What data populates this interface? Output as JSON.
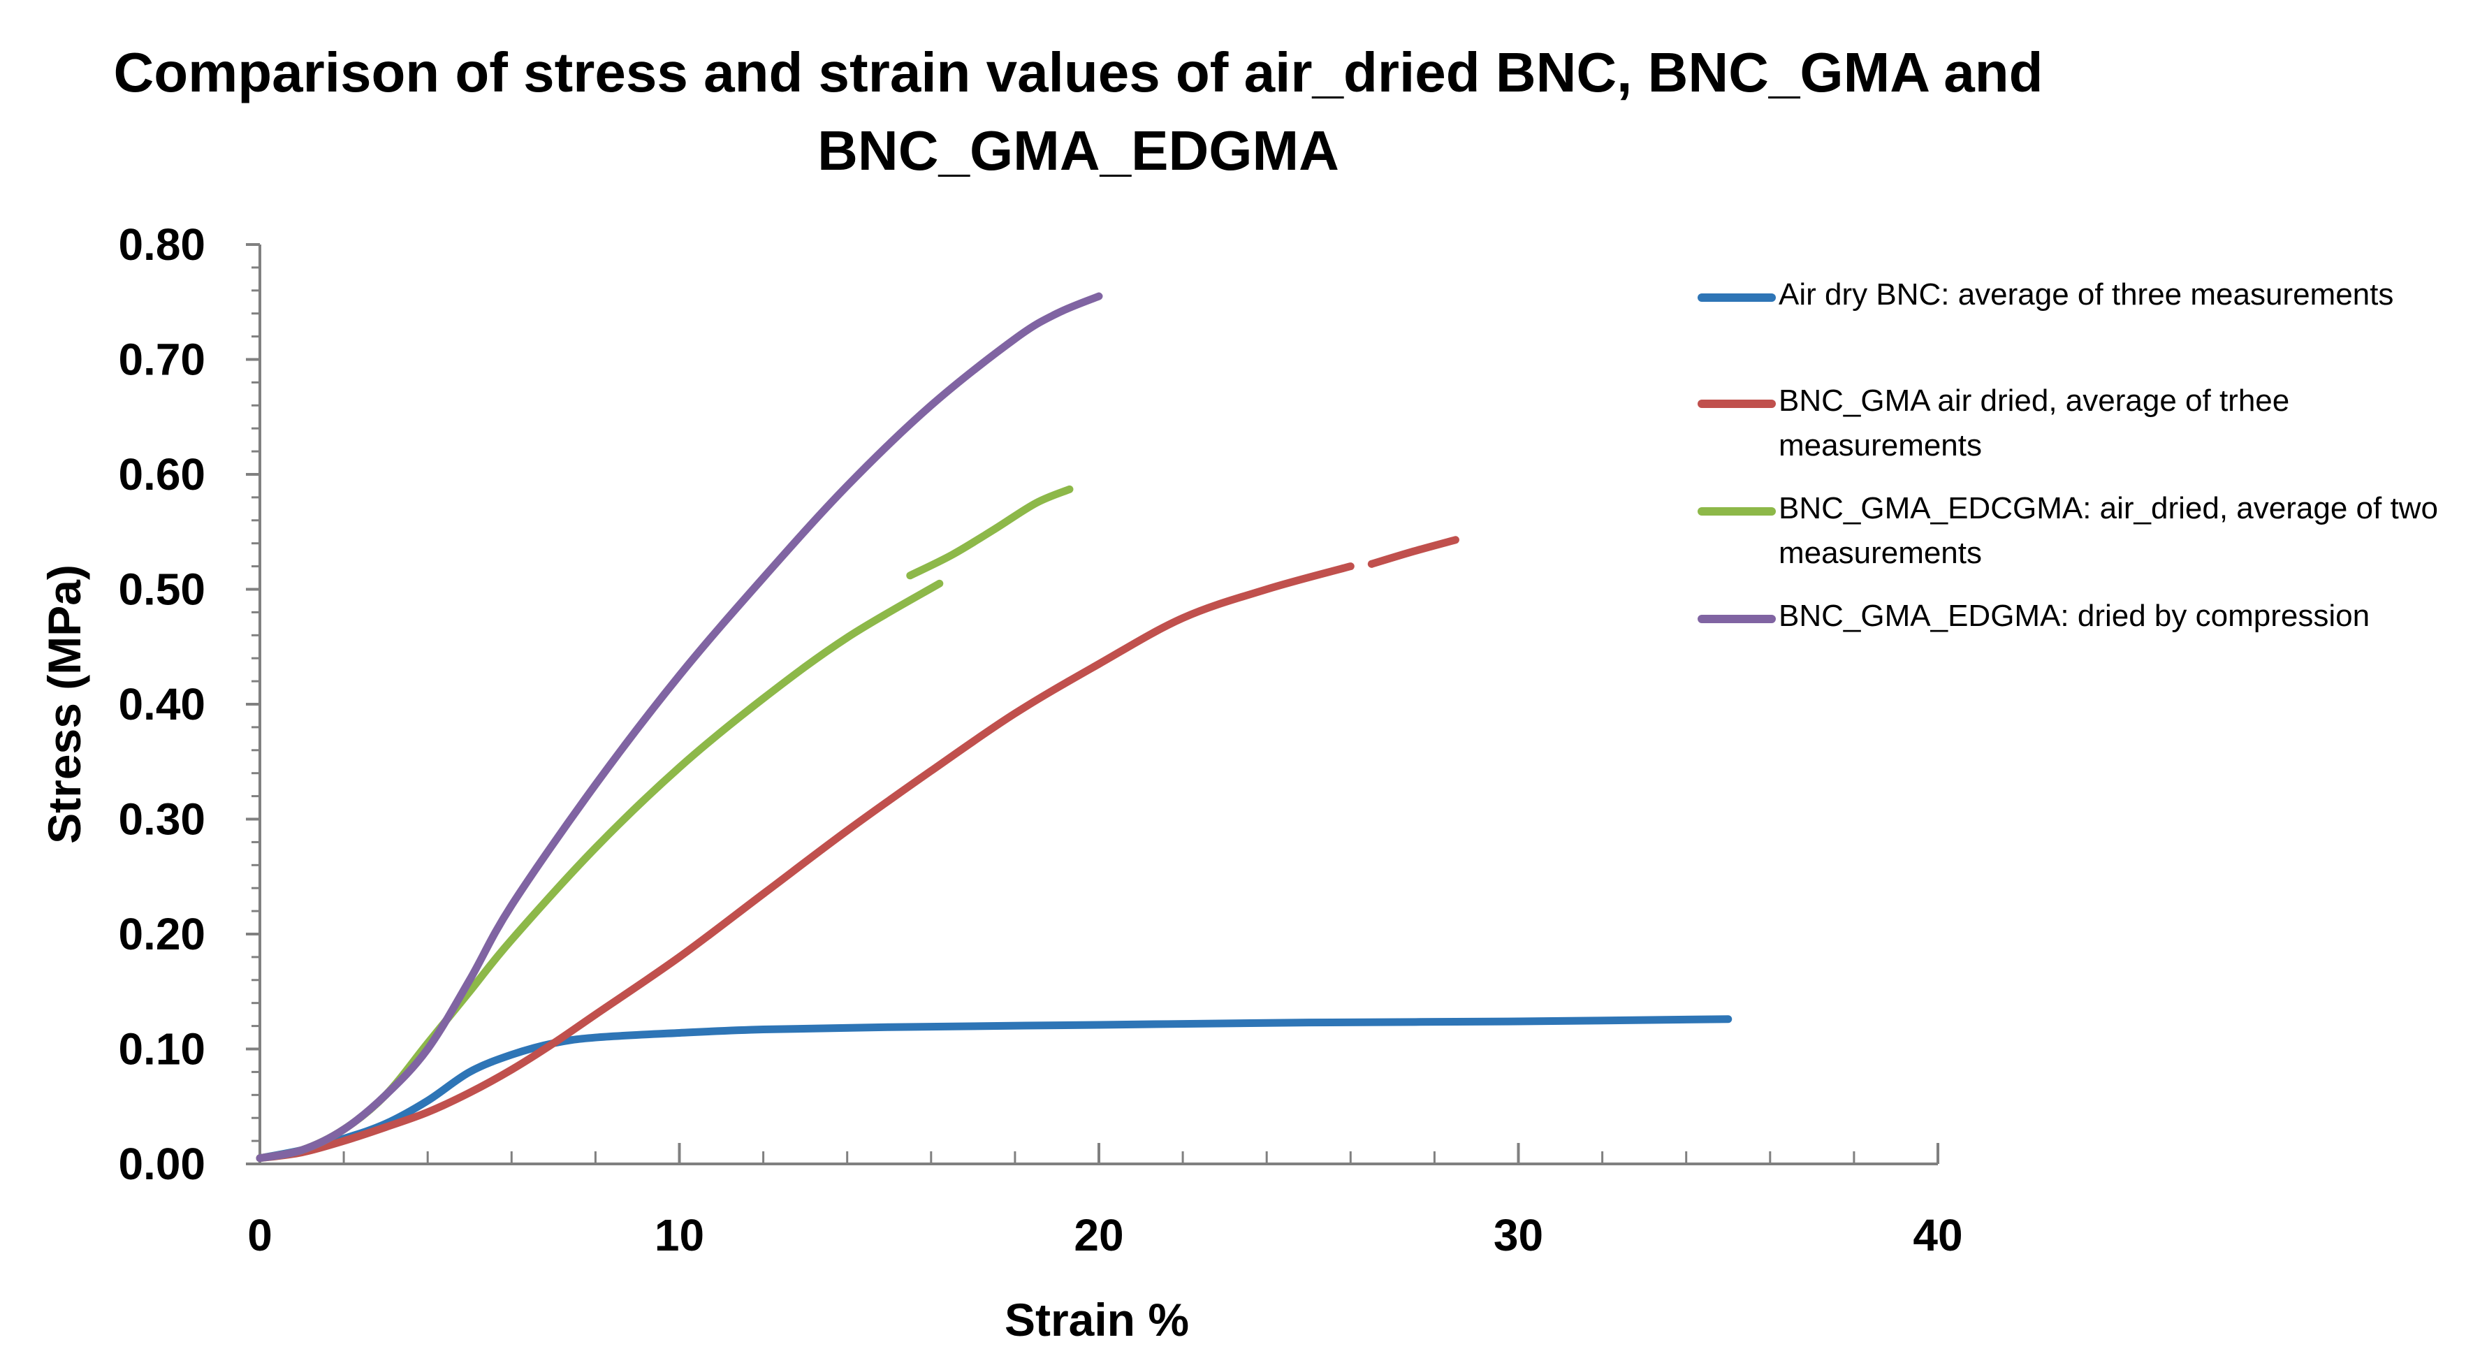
{
  "chart_data": {
    "type": "line",
    "title_lines": [
      "Comparison of stress and strain values of air_dried BNC, BNC_GMA and",
      "BNC_GMA_EDGMA"
    ],
    "xlabel": "Strain %",
    "ylabel": "Stress (MPa)",
    "xlim": [
      0,
      40
    ],
    "ylim": [
      0,
      0.8
    ],
    "x_ticks": [
      "0",
      "10",
      "20",
      "30",
      "40"
    ],
    "y_ticks": [
      "0.00",
      "0.10",
      "0.20",
      "0.30",
      "0.40",
      "0.50",
      "0.60",
      "0.70",
      "0.80"
    ],
    "grid": false,
    "legend_position": "right",
    "series": [
      {
        "name": "Air dry BNC: average of three measurements",
        "color": "#2E75B6",
        "segments": [
          [
            [
              0,
              0.005
            ],
            [
              1,
              0.012
            ],
            [
              2,
              0.022
            ],
            [
              3,
              0.035
            ],
            [
              4,
              0.055
            ],
            [
              5,
              0.08
            ],
            [
              6,
              0.095
            ],
            [
              7,
              0.105
            ],
            [
              8,
              0.11
            ],
            [
              10,
              0.114
            ],
            [
              12,
              0.117
            ],
            [
              15,
              0.119
            ],
            [
              20,
              0.121
            ],
            [
              25,
              0.123
            ],
            [
              30,
              0.124
            ],
            [
              35,
              0.126
            ]
          ]
        ]
      },
      {
        "name": "BNC_GMA air dried, average of trhee measurements",
        "color": "#C0504D",
        "segments": [
          [
            [
              0,
              0.005
            ],
            [
              1,
              0.01
            ],
            [
              2,
              0.02
            ],
            [
              3,
              0.032
            ],
            [
              4,
              0.045
            ],
            [
              5,
              0.062
            ],
            [
              6,
              0.082
            ],
            [
              7,
              0.105
            ],
            [
              8,
              0.13
            ],
            [
              10,
              0.18
            ],
            [
              12,
              0.235
            ],
            [
              14,
              0.29
            ],
            [
              16,
              0.342
            ],
            [
              18,
              0.392
            ],
            [
              20,
              0.435
            ],
            [
              22,
              0.475
            ],
            [
              24,
              0.5
            ],
            [
              26,
              0.52
            ]
          ],
          [
            [
              26.5,
              0.522
            ],
            [
              27.5,
              0.533
            ],
            [
              28.5,
              0.543
            ]
          ]
        ]
      },
      {
        "name": "BNC_GMA_EDCGMA: air_dried, average of two measurements",
        "color": "#8DB849",
        "segments": [
          [
            [
              0,
              0.005
            ],
            [
              1,
              0.012
            ],
            [
              2,
              0.03
            ],
            [
              3,
              0.06
            ],
            [
              4,
              0.105
            ],
            [
              5,
              0.15
            ],
            [
              6,
              0.195
            ],
            [
              8,
              0.275
            ],
            [
              10,
              0.345
            ],
            [
              12,
              0.405
            ],
            [
              14,
              0.458
            ],
            [
              16.2,
              0.505
            ]
          ],
          [
            [
              15.5,
              0.512
            ],
            [
              16.5,
              0.53
            ],
            [
              17.5,
              0.552
            ],
            [
              18.5,
              0.575
            ],
            [
              19.3,
              0.587
            ]
          ]
        ]
      },
      {
        "name": "BNC_GMA_EDGMA: dried by compression",
        "color": "#8064A2",
        "segments": [
          [
            [
              0,
              0.005
            ],
            [
              1,
              0.012
            ],
            [
              2,
              0.03
            ],
            [
              3,
              0.06
            ],
            [
              4,
              0.1
            ],
            [
              5,
              0.16
            ],
            [
              6,
              0.225
            ],
            [
              8,
              0.33
            ],
            [
              10,
              0.425
            ],
            [
              12,
              0.51
            ],
            [
              14,
              0.59
            ],
            [
              16,
              0.66
            ],
            [
              18,
              0.718
            ],
            [
              19,
              0.74
            ],
            [
              20,
              0.755
            ]
          ]
        ]
      }
    ]
  }
}
